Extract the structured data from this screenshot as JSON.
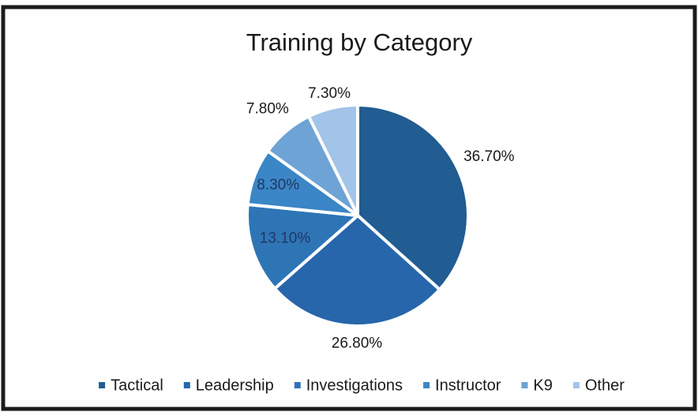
{
  "chart_data": {
    "type": "pie",
    "title": "Training by Category",
    "categories": [
      "Tactical",
      "Leadership",
      "Investigations",
      "Instructor",
      "K9",
      "Other"
    ],
    "values": [
      36.7,
      26.8,
      13.1,
      8.3,
      7.8,
      7.3
    ],
    "value_labels": [
      "36.70%",
      "26.80%",
      "13.10%",
      "8.30%",
      "7.80%",
      "7.30%"
    ],
    "colors": [
      "#215c92",
      "#2766ab",
      "#2e75b6",
      "#3a86c6",
      "#6ea3d6",
      "#a2c4e8"
    ],
    "legend": "bottom"
  }
}
